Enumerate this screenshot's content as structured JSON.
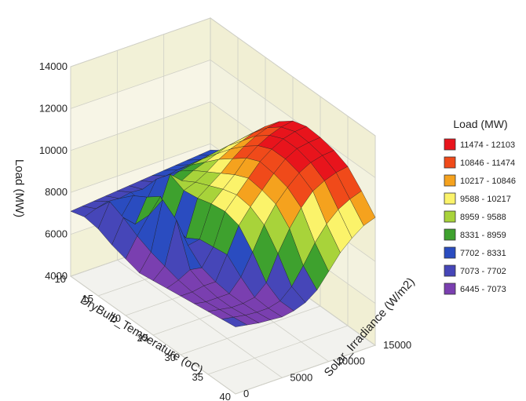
{
  "chart_data": {
    "type": "surface",
    "title": "",
    "zlabel": "Load (MW)",
    "xlabel": "DryBulb_Temperature (oC)",
    "ylabel": "Solar_Irradiance (W/m2)",
    "zlim": [
      4000,
      14000
    ],
    "z_ticks": [
      "4000",
      "6000",
      "8000",
      "10000",
      "12000",
      "14000"
    ],
    "x_ticks": [
      "10",
      "15",
      "20",
      "25",
      "30",
      "35",
      "40"
    ],
    "y_ticks": [
      "0",
      "5000",
      "10000",
      "15000"
    ],
    "legend": {
      "title": "Load (MW)",
      "placement": "right",
      "items": [
        {
          "label": "11474 - 12103",
          "color": "#e8141c"
        },
        {
          "label": "10846 - 11474",
          "color": "#f04a1a"
        },
        {
          "label": "10217 - 10846",
          "color": "#f5a21e"
        },
        {
          "label": "9588 - 10217",
          "color": "#fbf36a"
        },
        {
          "label": "8959 - 9588",
          "color": "#a8d33a"
        },
        {
          "label": "8331 - 8959",
          "color": "#3ea12e"
        },
        {
          "label": "7702 - 8331",
          "color": "#2a4cc0"
        },
        {
          "label": "7073 - 7702",
          "color": "#4646b8"
        },
        {
          "label": "6445 - 7073",
          "color": "#7a3fb0"
        }
      ]
    },
    "grid": true,
    "approx_surface": {
      "temperature": [
        10,
        12.5,
        15,
        17.5,
        20,
        22.5,
        25,
        27.5,
        30,
        32.5,
        35,
        37.5,
        40
      ],
      "irradiance": [
        0,
        1250,
        2500,
        3750,
        5000,
        6250,
        7500,
        8750,
        10000,
        11250,
        12500,
        13750,
        15000
      ],
      "load": [
        [
          7100,
          7150,
          7200,
          7250,
          7300,
          7350,
          7400,
          7450,
          7500,
          7550,
          7600,
          7650,
          7700
        ],
        [
          7300,
          7500,
          7650,
          7600,
          7700,
          7650,
          7800,
          7900,
          8000,
          8050,
          8100,
          8100,
          8150
        ],
        [
          7200,
          8300,
          7400,
          8200,
          7600,
          8600,
          8400,
          8600,
          8700,
          8800,
          8900,
          8950,
          9000
        ],
        [
          6900,
          8000,
          7500,
          8600,
          7800,
          9300,
          8800,
          9100,
          9300,
          9500,
          9700,
          9800,
          9900
        ],
        [
          6700,
          7600,
          8400,
          9100,
          7600,
          9000,
          9200,
          9500,
          9900,
          10200,
          10400,
          10600,
          10700
        ],
        [
          6500,
          7300,
          9600,
          8000,
          7400,
          9100,
          9500,
          9900,
          10400,
          10800,
          11100,
          11300,
          11400
        ],
        [
          6600,
          7100,
          9100,
          7700,
          7800,
          9300,
          9800,
          10300,
          10900,
          11300,
          11600,
          11800,
          11900
        ],
        [
          6700,
          6900,
          7200,
          7100,
          7900,
          9400,
          10000,
          10600,
          11200,
          11600,
          11900,
          12050,
          12100
        ],
        [
          6800,
          6800,
          6900,
          6900,
          8000,
          9200,
          9900,
          10500,
          11100,
          11600,
          11900,
          12000,
          12050
        ],
        [
          6900,
          6800,
          6800,
          6800,
          7400,
          8400,
          9500,
          10300,
          10900,
          11400,
          11700,
          11850,
          11900
        ],
        [
          7000,
          6900,
          6800,
          6800,
          6900,
          7400,
          8600,
          9600,
          10400,
          11000,
          11300,
          11500,
          11600
        ],
        [
          7100,
          7000,
          6900,
          6850,
          6850,
          7000,
          7500,
          8300,
          9200,
          9900,
          10400,
          10700,
          10900
        ],
        [
          7200,
          7100,
          7000,
          6950,
          6900,
          7000,
          7200,
          7600,
          8300,
          9000,
          9500,
          9900,
          10100
        ]
      ]
    }
  }
}
